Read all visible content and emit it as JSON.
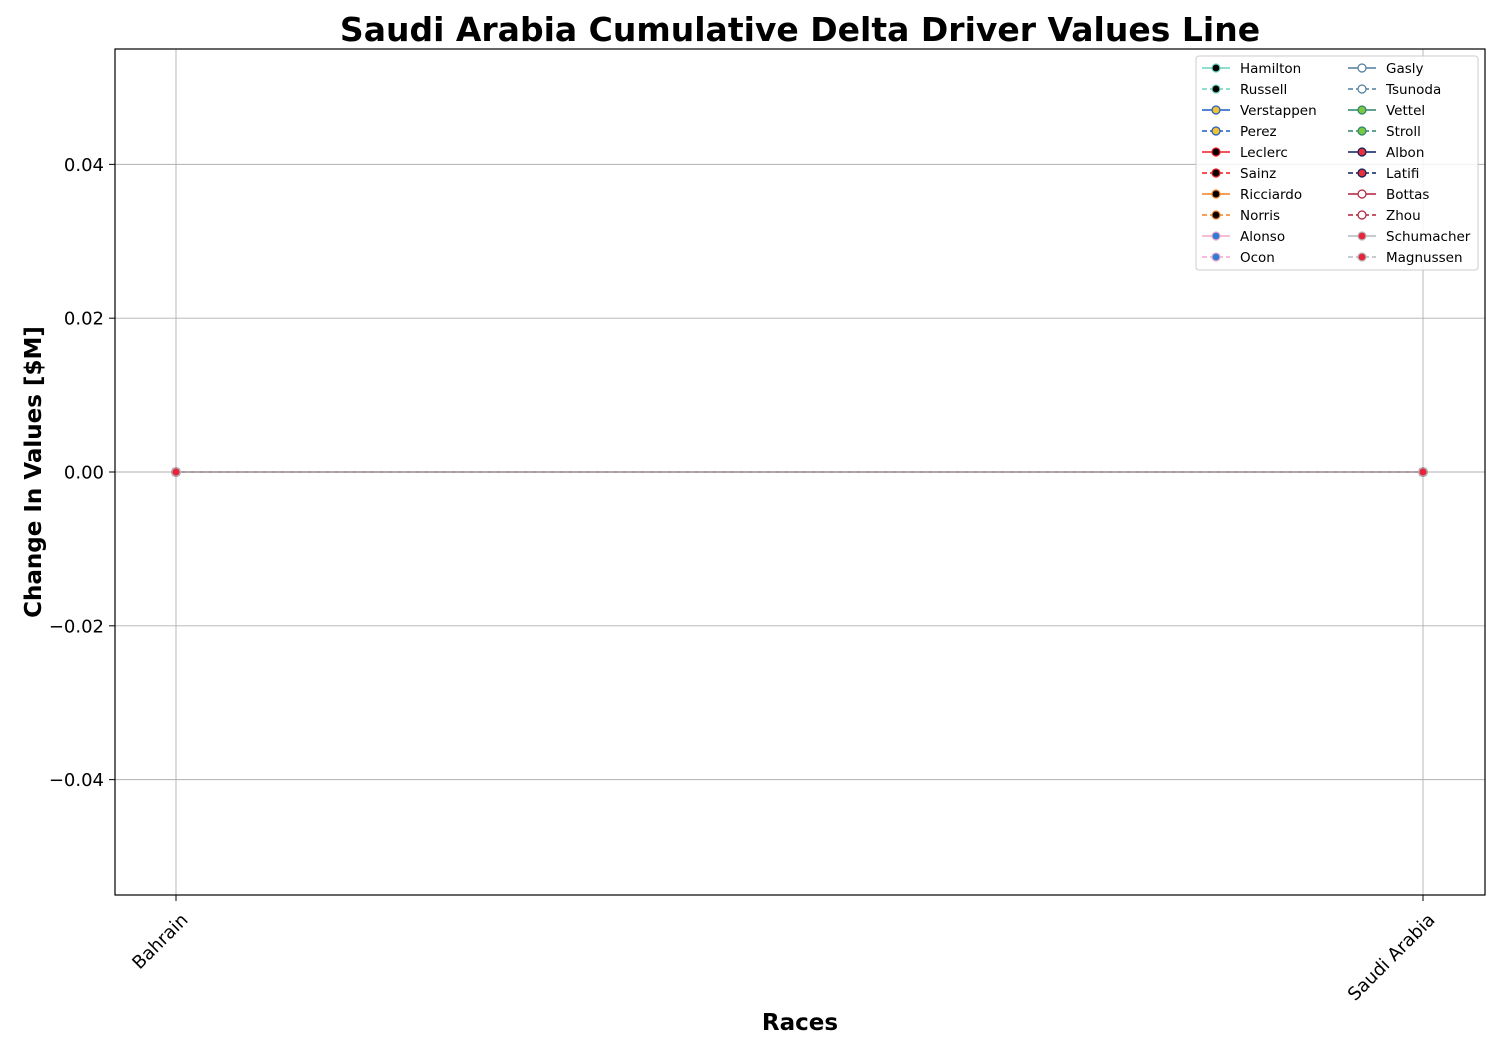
{
  "chart_data": {
    "type": "line",
    "title": "Saudi Arabia Cumulative Delta Driver Values Line",
    "xlabel": "Races",
    "ylabel": "Change In Values [$M]",
    "categories": [
      "Bahrain",
      "Saudi Arabia"
    ],
    "ylim": [
      -0.055,
      0.055
    ],
    "yticks": [
      -0.04,
      -0.02,
      0.0,
      0.02,
      0.04
    ],
    "ytick_labels": [
      "−0.04",
      "−0.02",
      "0.00",
      "0.02",
      "0.04"
    ],
    "grid": true,
    "legend_position": "top-right",
    "legend_columns": 2,
    "series": [
      {
        "name": "Hamilton",
        "values": [
          0,
          0
        ],
        "line_color": "#6CD3BF",
        "marker_fill": "#000000",
        "dashed": false
      },
      {
        "name": "Russell",
        "values": [
          0,
          0
        ],
        "line_color": "#6CD3BF",
        "marker_fill": "#000000",
        "dashed": true
      },
      {
        "name": "Verstappen",
        "values": [
          0,
          0
        ],
        "line_color": "#1E5BC6",
        "marker_fill": "#F1C232",
        "dashed": false
      },
      {
        "name": "Perez",
        "values": [
          0,
          0
        ],
        "line_color": "#1E5BC6",
        "marker_fill": "#F1C232",
        "dashed": true
      },
      {
        "name": "Leclerc",
        "values": [
          0,
          0
        ],
        "line_color": "#ED1C24",
        "marker_fill": "#000000",
        "dashed": false
      },
      {
        "name": "Sainz",
        "values": [
          0,
          0
        ],
        "line_color": "#ED1C24",
        "marker_fill": "#000000",
        "dashed": true
      },
      {
        "name": "Ricciardo",
        "values": [
          0,
          0
        ],
        "line_color": "#F58020",
        "marker_fill": "#000000",
        "dashed": false
      },
      {
        "name": "Norris",
        "values": [
          0,
          0
        ],
        "line_color": "#F58020",
        "marker_fill": "#000000",
        "dashed": true
      },
      {
        "name": "Alonso",
        "values": [
          0,
          0
        ],
        "line_color": "#F6A6C8",
        "marker_fill": "#2A7FD4",
        "dashed": false
      },
      {
        "name": "Ocon",
        "values": [
          0,
          0
        ],
        "line_color": "#F6A6C8",
        "marker_fill": "#2A7FD4",
        "dashed": true
      },
      {
        "name": "Gasly",
        "values": [
          0,
          0
        ],
        "line_color": "#4E7C9B",
        "marker_fill": "#FFFFFF",
        "dashed": false
      },
      {
        "name": "Tsunoda",
        "values": [
          0,
          0
        ],
        "line_color": "#4E7C9B",
        "marker_fill": "#FFFFFF",
        "dashed": true
      },
      {
        "name": "Vettel",
        "values": [
          0,
          0
        ],
        "line_color": "#2D826D",
        "marker_fill": "#7AC943",
        "dashed": false
      },
      {
        "name": "Stroll",
        "values": [
          0,
          0
        ],
        "line_color": "#2D826D",
        "marker_fill": "#7AC943",
        "dashed": true
      },
      {
        "name": "Albon",
        "values": [
          0,
          0
        ],
        "line_color": "#0A1E5A",
        "marker_fill": "#E8303A",
        "dashed": false
      },
      {
        "name": "Latifi",
        "values": [
          0,
          0
        ],
        "line_color": "#0A1E5A",
        "marker_fill": "#E8303A",
        "dashed": true
      },
      {
        "name": "Bottas",
        "values": [
          0,
          0
        ],
        "line_color": "#B12039",
        "marker_fill": "#FFFFFF",
        "dashed": false
      },
      {
        "name": "Zhou",
        "values": [
          0,
          0
        ],
        "line_color": "#B12039",
        "marker_fill": "#FFFFFF",
        "dashed": true
      },
      {
        "name": "Schumacher",
        "values": [
          0,
          0
        ],
        "line_color": "#B6BABD",
        "marker_fill": "#E6253B",
        "dashed": false
      },
      {
        "name": "Magnussen",
        "values": [
          0,
          0
        ],
        "line_color": "#B6BABD",
        "marker_fill": "#E6253B",
        "dashed": true
      }
    ]
  }
}
